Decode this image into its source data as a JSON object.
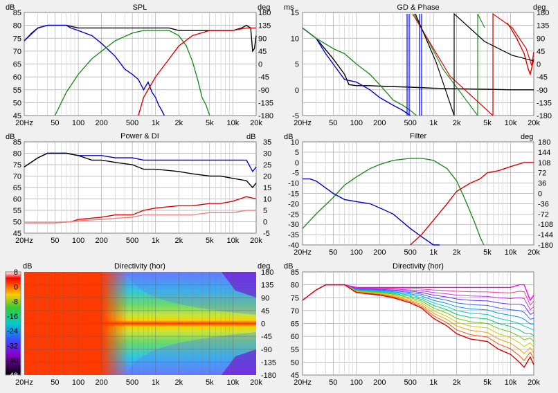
{
  "panels": {
    "spl": {
      "title": "SPL",
      "ylabel_left": "dB",
      "ylabel_right": "deg",
      "yticks_left": [
        "85",
        "80",
        "75",
        "70",
        "65",
        "60",
        "55",
        "50",
        "45"
      ],
      "yticks_right": [
        "180",
        "135",
        "90",
        "45",
        "0",
        "-45",
        "-90",
        "-135",
        "-180"
      ],
      "xticks": [
        "20Hz",
        "50",
        "100",
        "200",
        "500",
        "1k",
        "2k",
        "5k",
        "10k",
        "20k"
      ]
    },
    "gd": {
      "title": "GD & Phase",
      "ylabel_left": "ms",
      "ylabel_right": "deg",
      "yticks_left": [
        "15",
        "10",
        "5",
        "0",
        "-5"
      ],
      "yticks_right": [
        "180",
        "135",
        "90",
        "45",
        "0",
        "-45",
        "-90",
        "-135",
        "-180"
      ],
      "xticks": [
        "20Hz",
        "50",
        "100",
        "200",
        "500",
        "1k",
        "2k",
        "5k",
        "10k",
        "20k"
      ]
    },
    "power": {
      "title": "Power & DI",
      "ylabel_left": "dB",
      "ylabel_right": "dB",
      "yticks_left": [
        "85",
        "80",
        "75",
        "70",
        "65",
        "60",
        "55",
        "50",
        "45"
      ],
      "yticks_right": [
        "35",
        "30",
        "25",
        "20",
        "15",
        "10",
        "5",
        "0",
        "-5"
      ],
      "xticks": [
        "20Hz",
        "50",
        "100",
        "200",
        "500",
        "1k",
        "2k",
        "5k",
        "10k",
        "20k"
      ]
    },
    "filter": {
      "title": "Filter",
      "ylabel_left": "dB",
      "ylabel_right": "deg",
      "yticks_left": [
        "10",
        "5",
        "0",
        "-5",
        "-10",
        "-15",
        "-20",
        "-25",
        "-30",
        "-35",
        "-40"
      ],
      "yticks_right": [
        "180",
        "144",
        "108",
        "72",
        "36",
        "0",
        "-36",
        "-72",
        "-108",
        "-144",
        "-180"
      ],
      "xticks": [
        "20Hz",
        "50",
        "100",
        "200",
        "500",
        "1k",
        "2k",
        "5k",
        "10k",
        "20k"
      ]
    },
    "dirmap": {
      "title": "Directivity (hor)",
      "ylabel_left": "dB",
      "ylabel_right": "deg",
      "colorbar_ticks": [
        "8",
        "0",
        "-8",
        "-16",
        "-24",
        "-32",
        "-40",
        "-48"
      ],
      "yticks_right": [
        "180",
        "135",
        "90",
        "45",
        "0",
        "-45",
        "-90",
        "-135",
        "-180"
      ],
      "xticks": [
        "20Hz",
        "50",
        "100",
        "200",
        "500",
        "1k",
        "2k",
        "5k",
        "10k",
        "20k"
      ]
    },
    "dircurves": {
      "title": "Directivity (hor)",
      "ylabel_left": "dB",
      "yticks_left": [
        "85",
        "80",
        "75",
        "70",
        "65",
        "60",
        "55",
        "50",
        "45"
      ],
      "xticks": [
        "20Hz",
        "50",
        "100",
        "200",
        "500",
        "1k",
        "2k",
        "5k",
        "10k",
        "20k"
      ]
    }
  },
  "chart_data": [
    {
      "type": "line",
      "title": "SPL",
      "xscale": "log",
      "xlim": [
        20,
        20000
      ],
      "ylim": [
        45,
        85
      ],
      "y2lim": [
        -180,
        180
      ],
      "series": [
        {
          "color": "#000000",
          "x": [
            20,
            25,
            30,
            40,
            50,
            70,
            100,
            150,
            200,
            300,
            500,
            700,
            1000,
            1500,
            2000,
            3000,
            5000,
            7000,
            10000,
            13000,
            15000,
            17000,
            18000,
            19000,
            20000
          ],
          "y": [
            74,
            77,
            79,
            80,
            80,
            80,
            79,
            79,
            79,
            79,
            79,
            79,
            79,
            79,
            78,
            78,
            78,
            78,
            78,
            79,
            80,
            79,
            70,
            71,
            76
          ]
        },
        {
          "color": "#0000cc",
          "x": [
            20,
            30,
            40,
            50,
            70,
            80,
            100,
            150,
            200,
            300,
            400,
            500,
            600,
            700,
            800,
            900,
            1000,
            1100,
            1200,
            1300
          ],
          "y": [
            74,
            79,
            80,
            80,
            80,
            79,
            78,
            76,
            73,
            68,
            63,
            61,
            59,
            55,
            58,
            54,
            52,
            49,
            47,
            45
          ]
        },
        {
          "color": "#228b22",
          "x": [
            50,
            70,
            100,
            150,
            200,
            300,
            500,
            700,
            1000,
            1500,
            2000,
            2500,
            3000,
            3500,
            4000,
            4500,
            5000
          ],
          "y": [
            45,
            54,
            61,
            67,
            70,
            74,
            77,
            78,
            78,
            78,
            76,
            72,
            66,
            59,
            52,
            49,
            45
          ]
        },
        {
          "color": "#dd0000",
          "x": [
            600,
            700,
            1000,
            1500,
            2000,
            3000,
            5000,
            7000,
            10000,
            15000,
            20000
          ],
          "y": [
            45,
            52,
            60,
            67,
            72,
            76,
            78,
            78,
            78,
            79,
            79
          ]
        }
      ]
    },
    {
      "type": "line",
      "title": "GD & Phase",
      "xscale": "log",
      "xlim": [
        20,
        20000
      ],
      "ylim": [
        -5,
        15
      ],
      "y2lim": [
        -180,
        180
      ],
      "series": [
        {
          "color": "#000000",
          "x": [
            20,
            30,
            50,
            70,
            80,
            100,
            150,
            200,
            500,
            1000,
            2000,
            5000,
            10000,
            20000
          ],
          "y": [
            12,
            10,
            6,
            3,
            1,
            0.8,
            0.8,
            0.7,
            0.5,
            0.3,
            0.2,
            0.1,
            0,
            0
          ]
        },
        {
          "color": "#0000cc",
          "x": [
            20,
            30,
            40,
            50,
            70,
            100,
            150,
            200,
            300,
            400,
            500
          ],
          "y": [
            12,
            10,
            7,
            5,
            2,
            1.5,
            0,
            -1.5,
            -3,
            -4,
            -5
          ]
        },
        {
          "color": "#228b22",
          "x": [
            20,
            30,
            50,
            70,
            100,
            150,
            200,
            300,
            400,
            500,
            600
          ],
          "y": [
            12,
            10,
            8,
            7,
            5,
            3,
            1,
            -2,
            -3,
            -4,
            -5
          ]
        },
        {
          "color": "#dd0000",
          "x": [
            9000,
            10000,
            12000,
            15000,
            17000,
            18000,
            20000
          ],
          "y": [
            13,
            12,
            10,
            7,
            4,
            3,
            6
          ]
        }
      ]
    },
    {
      "type": "line",
      "title": "Power & DI",
      "xscale": "log",
      "xlim": [
        20,
        20000
      ],
      "ylim": [
        45,
        85
      ],
      "y2lim": [
        -5,
        35
      ],
      "series": [
        {
          "color": "#0000cc",
          "x": [
            20,
            30,
            40,
            50,
            70,
            100,
            150,
            200,
            300,
            500,
            700,
            1000,
            2000,
            3000,
            5000,
            7000,
            10000,
            15000,
            18000,
            20000
          ],
          "y": [
            74,
            78,
            80,
            80,
            80,
            79,
            79,
            79,
            78,
            78,
            77,
            77,
            77,
            77,
            77,
            77,
            77,
            77,
            72,
            74
          ]
        },
        {
          "color": "#000000",
          "x": [
            20,
            30,
            40,
            50,
            70,
            100,
            150,
            200,
            300,
            500,
            700,
            1000,
            2000,
            3000,
            5000,
            7000,
            10000,
            15000,
            18000,
            20000
          ],
          "y": [
            74,
            78,
            80,
            80,
            80,
            79,
            77,
            77,
            76,
            75,
            73,
            73,
            72,
            71,
            70,
            70,
            69,
            68,
            65,
            67
          ]
        },
        {
          "color": "#dd0000",
          "x": [
            20,
            50,
            80,
            100,
            200,
            300,
            500,
            700,
            1000,
            2000,
            3000,
            5000,
            7000,
            10000,
            15000,
            20000
          ],
          "y": [
            49.5,
            49.5,
            50,
            51,
            52,
            53,
            53,
            55,
            56,
            57,
            57,
            58,
            58,
            59,
            61,
            60
          ]
        },
        {
          "color": "#f08080",
          "x": [
            20,
            50,
            80,
            100,
            200,
            300,
            500,
            700,
            1000,
            2000,
            3000,
            5000,
            7000,
            10000,
            15000,
            20000
          ],
          "y": [
            49.5,
            49.5,
            50,
            50.5,
            51,
            51.5,
            52,
            53,
            53,
            53,
            53,
            54,
            54,
            54,
            55,
            55
          ]
        }
      ]
    },
    {
      "type": "line",
      "title": "Filter",
      "xscale": "log",
      "xlim": [
        20,
        20000
      ],
      "ylim": [
        -40,
        10
      ],
      "y2lim": [
        -180,
        180
      ],
      "series": [
        {
          "color": "#228b22",
          "x": [
            20,
            30,
            50,
            70,
            100,
            150,
            200,
            300,
            500,
            700,
            1000,
            1500,
            2000,
            2500,
            3000,
            3500,
            4000,
            4500
          ],
          "y": [
            -32,
            -25,
            -17,
            -11,
            -7,
            -3,
            -1,
            1,
            2,
            2,
            1,
            -3,
            -9,
            -17,
            -24,
            -30,
            -36,
            -40
          ]
        },
        {
          "color": "#0000cc",
          "x": [
            20,
            25,
            30,
            50,
            70,
            100,
            150,
            200,
            300,
            500,
            700,
            1000,
            1200
          ],
          "y": [
            -8,
            -8,
            -9,
            -15,
            -18,
            -19,
            -20,
            -22,
            -25,
            -32,
            -36,
            -40,
            -41
          ]
        },
        {
          "color": "#dd0000",
          "x": [
            500,
            700,
            1000,
            1500,
            2000,
            3000,
            4000,
            5000,
            7000,
            10000,
            15000,
            20000
          ],
          "y": [
            -40,
            -35,
            -28,
            -20,
            -14,
            -10,
            -8,
            -5,
            -4,
            -2,
            0,
            0
          ]
        }
      ]
    },
    {
      "type": "heatmap",
      "title": "Directivity (hor)",
      "xscale": "log",
      "xlim": [
        20,
        20000
      ],
      "ylim": [
        -180,
        180
      ],
      "zlim": [
        -48,
        8
      ]
    },
    {
      "type": "line",
      "title": "Directivity (hor)",
      "xscale": "log",
      "xlim": [
        20,
        20000
      ],
      "ylim": [
        45,
        85
      ],
      "series": [
        {
          "color": "#ff00ff",
          "x": [
            20,
            30,
            40,
            50,
            70,
            100,
            200,
            300,
            500,
            1000,
            2000,
            5000,
            10000,
            13000,
            15000,
            18000,
            20000
          ],
          "y": [
            74,
            78,
            80,
            80,
            80,
            79,
            79,
            79,
            79,
            79,
            79,
            79,
            79,
            80,
            80,
            74,
            76
          ]
        },
        {
          "color": "#dd0000",
          "x": [
            20,
            30,
            40,
            50,
            70,
            100,
            200,
            300,
            500,
            700,
            1000,
            1500,
            2000,
            3000,
            5000,
            7000,
            10000,
            13000,
            15000,
            18000,
            20000
          ],
          "y": [
            74,
            78,
            80,
            80,
            80,
            77,
            76,
            75,
            73,
            71,
            67,
            64,
            61,
            59,
            58,
            55,
            53,
            50,
            48,
            52,
            49
          ]
        }
      ]
    }
  ]
}
